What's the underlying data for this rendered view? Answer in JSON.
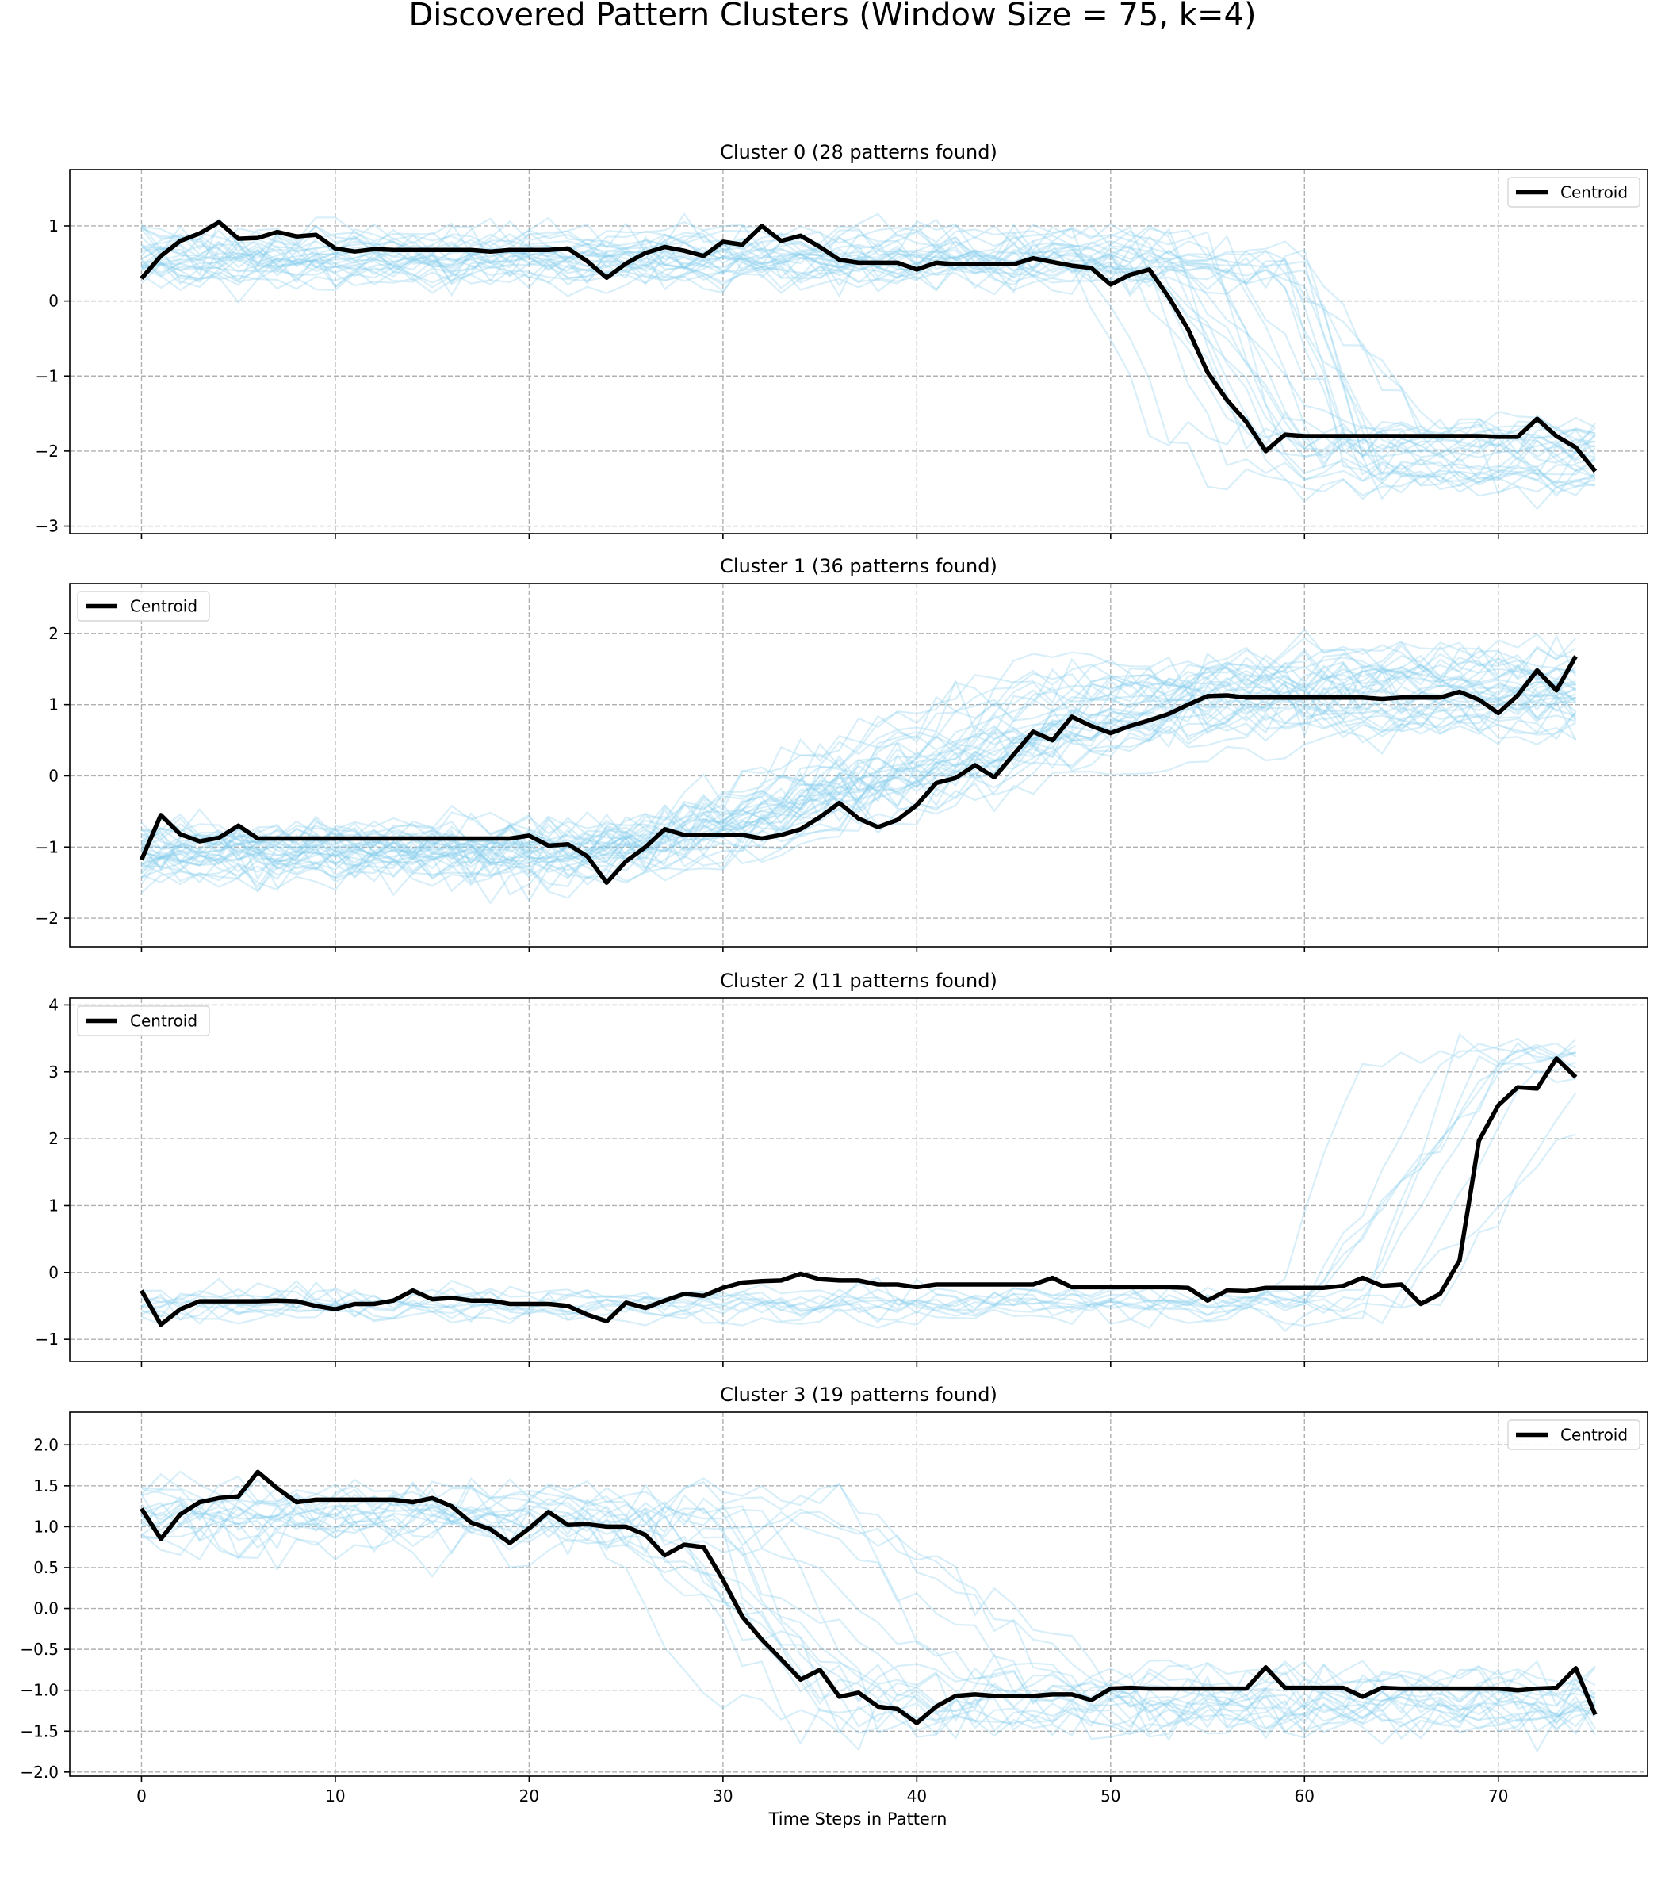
{
  "figure": {
    "title": "Discovered Pattern Clusters (Window Size = 75, k=4)",
    "xlabel": "Time Steps in Pattern",
    "legend_label": "Centroid",
    "individual_color": "#87ceeb",
    "centroid_color": "#000000",
    "grid_color": "#b0b0b0"
  },
  "chart_data": [
    {
      "type": "line",
      "title": "Cluster 0 (28 patterns found)",
      "patterns_found": 28,
      "xlim": [
        -3.7,
        77.7
      ],
      "ylim": [
        -3.1,
        1.75
      ],
      "xticks": [
        0,
        10,
        20,
        30,
        40,
        50,
        60,
        70
      ],
      "yticks": [
        -3,
        -2,
        -1,
        0,
        1
      ],
      "ytick_labels": [
        "−3",
        "−2",
        "−1",
        "0",
        "1"
      ],
      "legend_position": "upper-right",
      "shape": "high-then-drop",
      "centroid": [
        0.3,
        0.6,
        0.8,
        0.9,
        1.05,
        0.83,
        0.84,
        0.92,
        0.86,
        0.88,
        0.7,
        0.66,
        0.69,
        0.68,
        0.68,
        0.68,
        0.68,
        0.68,
        0.66,
        0.68,
        0.68,
        0.68,
        0.7,
        0.53,
        0.31,
        0.5,
        0.64,
        0.72,
        0.67,
        0.6,
        0.79,
        0.75,
        1.0,
        0.8,
        0.87,
        0.72,
        0.55,
        0.51,
        0.51,
        0.51,
        0.42,
        0.51,
        0.49,
        0.49,
        0.49,
        0.49,
        0.57,
        0.52,
        0.47,
        0.44,
        0.22,
        0.35,
        0.42,
        0.05,
        -0.38,
        -0.95,
        -1.32,
        -1.61,
        -2.0,
        -1.78,
        -1.8,
        -1.8,
        -1.8,
        -1.8,
        -1.8,
        -1.8,
        -1.8,
        -1.8,
        -1.8,
        -1.8,
        -1.81,
        -1.81,
        -1.57,
        -1.8,
        -1.95,
        -2.27
      ]
    },
    {
      "type": "line",
      "title": "Cluster 1 (36 patterns found)",
      "patterns_found": 36,
      "xlim": [
        -3.7,
        77.7
      ],
      "ylim": [
        -2.4,
        2.7
      ],
      "xticks": [
        0,
        10,
        20,
        30,
        40,
        50,
        60,
        70
      ],
      "yticks": [
        -2,
        -1,
        0,
        1,
        2
      ],
      "ytick_labels": [
        "−2",
        "−1",
        "0",
        "1",
        "2"
      ],
      "legend_position": "upper-left",
      "shape": "low-then-rise",
      "centroid": [
        -1.18,
        -0.55,
        -0.82,
        -0.92,
        -0.87,
        -0.7,
        -0.88,
        -0.88,
        -0.88,
        -0.88,
        -0.88,
        -0.88,
        -0.88,
        -0.88,
        -0.88,
        -0.88,
        -0.88,
        -0.88,
        -0.88,
        -0.88,
        -0.84,
        -0.98,
        -0.96,
        -1.13,
        -1.5,
        -1.2,
        -1.0,
        -0.75,
        -0.83,
        -0.83,
        -0.83,
        -0.83,
        -0.88,
        -0.83,
        -0.75,
        -0.58,
        -0.38,
        -0.6,
        -0.72,
        -0.62,
        -0.41,
        -0.1,
        -0.03,
        0.15,
        -0.02,
        0.3,
        0.62,
        0.5,
        0.83,
        0.7,
        0.6,
        0.7,
        0.78,
        0.87,
        1.0,
        1.12,
        1.13,
        1.1,
        1.1,
        1.1,
        1.1,
        1.1,
        1.1,
        1.1,
        1.08,
        1.1,
        1.1,
        1.1,
        1.18,
        1.07,
        0.88,
        1.13,
        1.48,
        1.2,
        1.68
      ]
    },
    {
      "type": "line",
      "title": "Cluster 2 (11 patterns found)",
      "patterns_found": 11,
      "xlim": [
        -3.7,
        77.7
      ],
      "ylim": [
        -1.33,
        4.1
      ],
      "xticks": [
        0,
        10,
        20,
        30,
        40,
        50,
        60,
        70
      ],
      "yticks": [
        -1,
        0,
        1,
        2,
        3,
        4
      ],
      "ytick_labels": [
        "−1",
        "0",
        "1",
        "2",
        "3",
        "4"
      ],
      "legend_position": "upper-left",
      "shape": "flat-then-spike",
      "centroid": [
        -0.27,
        -0.78,
        -0.55,
        -0.43,
        -0.43,
        -0.43,
        -0.43,
        -0.42,
        -0.43,
        -0.5,
        -0.55,
        -0.47,
        -0.47,
        -0.42,
        -0.27,
        -0.4,
        -0.38,
        -0.42,
        -0.42,
        -0.47,
        -0.47,
        -0.47,
        -0.5,
        -0.63,
        -0.73,
        -0.45,
        -0.53,
        -0.42,
        -0.32,
        -0.35,
        -0.23,
        -0.15,
        -0.13,
        -0.12,
        -0.02,
        -0.1,
        -0.12,
        -0.12,
        -0.18,
        -0.18,
        -0.22,
        -0.18,
        -0.18,
        -0.18,
        -0.18,
        -0.18,
        -0.18,
        -0.08,
        -0.22,
        -0.22,
        -0.22,
        -0.22,
        -0.22,
        -0.22,
        -0.23,
        -0.42,
        -0.27,
        -0.28,
        -0.23,
        -0.23,
        -0.23,
        -0.23,
        -0.2,
        -0.08,
        -0.2,
        -0.18,
        -0.47,
        -0.32,
        0.18,
        1.97,
        2.5,
        2.77,
        2.75,
        3.2,
        2.92
      ]
    },
    {
      "type": "line",
      "title": "Cluster 3 (19 patterns found)",
      "patterns_found": 19,
      "xlim": [
        -3.7,
        77.7
      ],
      "ylim": [
        -2.05,
        2.4
      ],
      "xticks": [
        0,
        10,
        20,
        30,
        40,
        50,
        60,
        70
      ],
      "yticks": [
        -2.0,
        -1.5,
        -1.0,
        -0.5,
        0.0,
        0.5,
        1.0,
        1.5,
        2.0
      ],
      "ytick_labels": [
        "−2.0",
        "−1.5",
        "−1.0",
        "−0.5",
        "0.0",
        "0.5",
        "1.0",
        "1.5",
        "2.0"
      ],
      "legend_position": "upper-right",
      "shape": "high-then-drop-mid",
      "centroid": [
        1.22,
        0.85,
        1.15,
        1.3,
        1.35,
        1.37,
        1.67,
        1.47,
        1.3,
        1.33,
        1.33,
        1.33,
        1.33,
        1.33,
        1.3,
        1.35,
        1.25,
        1.05,
        0.97,
        0.8,
        0.98,
        1.18,
        1.02,
        1.03,
        1.0,
        1.0,
        0.9,
        0.65,
        0.78,
        0.75,
        0.35,
        -0.1,
        -0.38,
        -0.62,
        -0.87,
        -0.75,
        -1.08,
        -1.03,
        -1.2,
        -1.23,
        -1.4,
        -1.2,
        -1.07,
        -1.05,
        -1.07,
        -1.07,
        -1.07,
        -1.05,
        -1.05,
        -1.12,
        -0.98,
        -0.97,
        -0.98,
        -0.98,
        -0.98,
        -0.98,
        -0.98,
        -0.98,
        -0.72,
        -0.97,
        -0.97,
        -0.97,
        -0.97,
        -1.08,
        -0.97,
        -0.98,
        -0.98,
        -0.98,
        -0.98,
        -0.98,
        -0.98,
        -1.0,
        -0.98,
        -0.97,
        -0.73,
        -1.3
      ]
    }
  ]
}
